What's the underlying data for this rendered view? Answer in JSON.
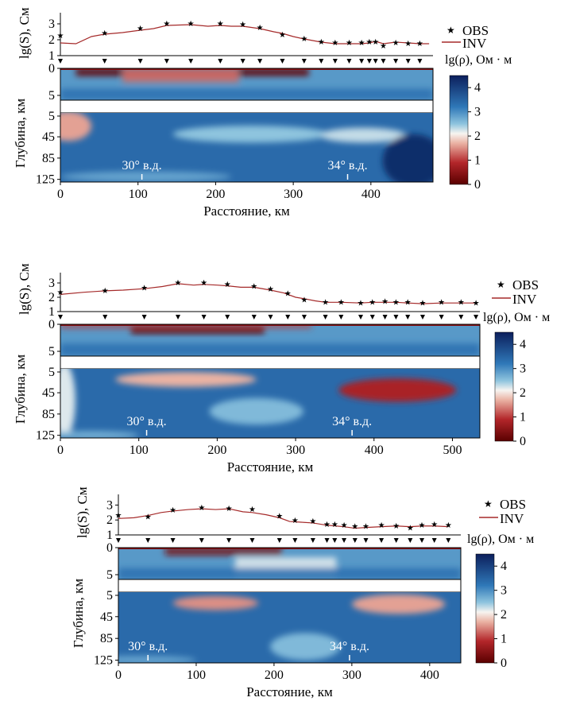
{
  "colors": {
    "conductive_dark": "#5a0000",
    "conductive": "#b3262a",
    "mid_pink": "#eab2a3",
    "neutral": "#f7f4f0",
    "light_blue": "#8ec4de",
    "mid_blue": "#2f78b8",
    "resistive_dark": "#0c1f5c",
    "profile_line": "#a52a2a",
    "marker": "#000000"
  },
  "common": {
    "ylabel_top": "lg(S), См",
    "ylabel_bottom": "Глубина, км",
    "xlabel": "Расстояние, км",
    "legend_obs": "OBS",
    "legend_inv": "INV",
    "colorbar_title": "lg(ρ), Ом · м",
    "colorbar_ticks": [
      "0",
      "1",
      "2",
      "3",
      "4"
    ],
    "top_ticks": [
      "1",
      "2",
      "3"
    ],
    "depth_ticks": [
      "0",
      "5",
      "5",
      "45",
      "85",
      "125"
    ],
    "lon_labels": [
      "30° в.д.",
      "34° в.д."
    ]
  },
  "chart_data": [
    {
      "type": "heatmap",
      "panel": 1,
      "x_max": 480,
      "xticks": [
        0,
        100,
        200,
        300,
        400
      ],
      "xlim": [
        0,
        480
      ],
      "top_ylim": [
        1,
        3.5
      ],
      "colorbar_range": [
        0,
        4.5
      ],
      "lon_marks": [
        105,
        370
      ],
      "stations": [
        0,
        57,
        103,
        137,
        168,
        206,
        235,
        257,
        286,
        314,
        336,
        354,
        372,
        388,
        398,
        406,
        416,
        432,
        448,
        463
      ],
      "obs": [
        [
          0,
          2.3
        ],
        [
          57,
          2.45
        ],
        [
          103,
          2.75
        ],
        [
          137,
          3.05
        ],
        [
          168,
          3.05
        ],
        [
          206,
          3.05
        ],
        [
          235,
          3.0
        ],
        [
          257,
          2.8
        ],
        [
          286,
          2.35
        ],
        [
          314,
          2.1
        ],
        [
          336,
          1.9
        ],
        [
          354,
          1.85
        ],
        [
          372,
          1.85
        ],
        [
          388,
          1.85
        ],
        [
          398,
          1.9
        ],
        [
          406,
          1.9
        ],
        [
          416,
          1.65
        ],
        [
          432,
          1.85
        ],
        [
          448,
          1.8
        ],
        [
          463,
          1.8
        ]
      ],
      "inv": [
        [
          0,
          1.8
        ],
        [
          20,
          1.75
        ],
        [
          40,
          2.2
        ],
        [
          57,
          2.35
        ],
        [
          80,
          2.45
        ],
        [
          103,
          2.6
        ],
        [
          120,
          2.7
        ],
        [
          137,
          2.9
        ],
        [
          168,
          2.95
        ],
        [
          190,
          2.85
        ],
        [
          206,
          2.9
        ],
        [
          220,
          2.85
        ],
        [
          235,
          2.85
        ],
        [
          257,
          2.7
        ],
        [
          275,
          2.5
        ],
        [
          286,
          2.4
        ],
        [
          300,
          2.2
        ],
        [
          314,
          2.05
        ],
        [
          336,
          1.85
        ],
        [
          354,
          1.75
        ],
        [
          372,
          1.75
        ],
        [
          388,
          1.75
        ],
        [
          398,
          1.8
        ],
        [
          406,
          1.9
        ],
        [
          416,
          1.75
        ],
        [
          432,
          1.85
        ],
        [
          448,
          1.8
        ],
        [
          463,
          1.75
        ],
        [
          475,
          1.75
        ]
      ],
      "upper_anomalies": [
        {
          "x0": 20,
          "x1": 320,
          "z0": 0,
          "z1": 1.2,
          "value": 0.1
        },
        {
          "x0": 80,
          "x1": 230,
          "z0": 0,
          "z1": 2.2,
          "value": 1.3
        },
        {
          "x0": 0,
          "x1": 480,
          "z0": 3.2,
          "z1": 5,
          "value": 3.3
        }
      ],
      "lower_anomalies": [
        {
          "x": 10,
          "z": 25,
          "rx": 30,
          "rz": 28,
          "value": 1.6
        },
        {
          "x": 245,
          "z": 40,
          "rx": 100,
          "rz": 16,
          "value": 2.5
        },
        {
          "x": 390,
          "z": 42,
          "rx": 55,
          "rz": 14,
          "value": 2.3
        },
        {
          "x": 110,
          "z": 120,
          "rx": 110,
          "rz": 10,
          "value": 2.8
        },
        {
          "x": 455,
          "z": 90,
          "rx": 40,
          "rz": 50,
          "value": 4.3
        }
      ]
    },
    {
      "type": "heatmap",
      "panel": 2,
      "x_max": 535,
      "xticks": [
        0,
        100,
        200,
        300,
        400,
        500
      ],
      "xlim": [
        0,
        535
      ],
      "top_ylim": [
        1,
        3.5
      ],
      "colorbar_range": [
        0,
        4.5
      ],
      "lon_marks": [
        110,
        372
      ],
      "stations": [
        0,
        57,
        107,
        150,
        183,
        213,
        247,
        268,
        290,
        311,
        338,
        358,
        383,
        398,
        414,
        428,
        443,
        462,
        486,
        511,
        530
      ],
      "obs": [
        [
          0,
          2.4
        ],
        [
          57,
          2.5
        ],
        [
          107,
          2.7
        ],
        [
          150,
          3.05
        ],
        [
          183,
          3.05
        ],
        [
          213,
          2.95
        ],
        [
          247,
          2.8
        ],
        [
          268,
          2.6
        ],
        [
          290,
          2.3
        ],
        [
          311,
          1.85
        ],
        [
          338,
          1.7
        ],
        [
          358,
          1.7
        ],
        [
          383,
          1.65
        ],
        [
          398,
          1.7
        ],
        [
          414,
          1.75
        ],
        [
          428,
          1.7
        ],
        [
          443,
          1.7
        ],
        [
          462,
          1.65
        ],
        [
          486,
          1.7
        ],
        [
          511,
          1.7
        ],
        [
          530,
          1.65
        ]
      ],
      "inv": [
        [
          0,
          2.2
        ],
        [
          30,
          2.35
        ],
        [
          57,
          2.45
        ],
        [
          80,
          2.5
        ],
        [
          107,
          2.6
        ],
        [
          130,
          2.75
        ],
        [
          150,
          2.95
        ],
        [
          170,
          2.85
        ],
        [
          183,
          2.9
        ],
        [
          200,
          2.85
        ],
        [
          213,
          2.8
        ],
        [
          230,
          2.7
        ],
        [
          247,
          2.7
        ],
        [
          268,
          2.5
        ],
        [
          285,
          2.3
        ],
        [
          300,
          2.0
        ],
        [
          311,
          1.9
        ],
        [
          325,
          1.75
        ],
        [
          338,
          1.65
        ],
        [
          358,
          1.65
        ],
        [
          383,
          1.6
        ],
        [
          398,
          1.65
        ],
        [
          414,
          1.65
        ],
        [
          428,
          1.65
        ],
        [
          443,
          1.6
        ],
        [
          462,
          1.55
        ],
        [
          486,
          1.6
        ],
        [
          511,
          1.6
        ],
        [
          530,
          1.6
        ]
      ],
      "upper_anomalies": [
        {
          "x0": 90,
          "x1": 260,
          "z0": 0,
          "z1": 1.5,
          "value": 0.1
        },
        {
          "x0": 0,
          "x1": 320,
          "z0": 0,
          "z1": 0.6,
          "value": 1.0
        },
        {
          "x0": 0,
          "x1": 535,
          "z0": 3.0,
          "z1": 5,
          "value": 3.3
        }
      ],
      "lower_anomalies": [
        {
          "x": 5,
          "z": 60,
          "rx": 14,
          "rz": 70,
          "value": 2.2
        },
        {
          "x": 160,
          "z": 20,
          "rx": 90,
          "rz": 14,
          "value": 1.7
        },
        {
          "x": 430,
          "z": 40,
          "rx": 75,
          "rz": 22,
          "value": 0.8
        },
        {
          "x": 250,
          "z": 80,
          "rx": 60,
          "rz": 25,
          "value": 2.6
        },
        {
          "x": 40,
          "z": 125,
          "rx": 60,
          "rz": 8,
          "value": 2.7
        }
      ]
    },
    {
      "type": "heatmap",
      "panel": 3,
      "x_max": 440,
      "xticks": [
        0,
        100,
        200,
        300,
        400
      ],
      "xlim": [
        0,
        440
      ],
      "top_ylim": [
        1,
        3.5
      ],
      "colorbar_range": [
        0,
        4.5
      ],
      "lon_marks": [
        38,
        297
      ],
      "stations": [
        0,
        38,
        70,
        107,
        142,
        172,
        207,
        227,
        250,
        268,
        278,
        290,
        304,
        318,
        338,
        357,
        375,
        390,
        406,
        424
      ],
      "obs": [
        [
          0,
          2.35
        ],
        [
          38,
          2.25
        ],
        [
          70,
          2.7
        ],
        [
          107,
          2.85
        ],
        [
          142,
          2.8
        ],
        [
          172,
          2.75
        ],
        [
          207,
          2.3
        ],
        [
          227,
          2.0
        ],
        [
          250,
          1.95
        ],
        [
          268,
          1.75
        ],
        [
          278,
          1.75
        ],
        [
          290,
          1.7
        ],
        [
          304,
          1.6
        ],
        [
          318,
          1.6
        ],
        [
          338,
          1.7
        ],
        [
          357,
          1.65
        ],
        [
          375,
          1.5
        ],
        [
          390,
          1.7
        ],
        [
          406,
          1.75
        ],
        [
          424,
          1.7
        ]
      ],
      "inv": [
        [
          0,
          2.1
        ],
        [
          20,
          2.15
        ],
        [
          38,
          2.3
        ],
        [
          55,
          2.5
        ],
        [
          70,
          2.6
        ],
        [
          90,
          2.7
        ],
        [
          107,
          2.75
        ],
        [
          125,
          2.7
        ],
        [
          142,
          2.75
        ],
        [
          160,
          2.55
        ],
        [
          172,
          2.5
        ],
        [
          190,
          2.35
        ],
        [
          207,
          2.15
        ],
        [
          220,
          1.9
        ],
        [
          235,
          1.85
        ],
        [
          250,
          1.8
        ],
        [
          268,
          1.65
        ],
        [
          290,
          1.55
        ],
        [
          304,
          1.45
        ],
        [
          318,
          1.5
        ],
        [
          338,
          1.55
        ],
        [
          357,
          1.6
        ],
        [
          375,
          1.55
        ],
        [
          390,
          1.6
        ],
        [
          406,
          1.6
        ],
        [
          424,
          1.55
        ]
      ],
      "upper_anomalies": [
        {
          "x0": 60,
          "x1": 210,
          "z0": 0,
          "z1": 1.2,
          "value": 0.3
        },
        {
          "x0": 150,
          "x1": 280,
          "z0": 1.5,
          "z1": 5,
          "value": 2.2
        },
        {
          "x0": 0,
          "x1": 440,
          "z0": 3.2,
          "z1": 5,
          "value": 3.3
        }
      ],
      "lower_anomalies": [
        {
          "x": 125,
          "z": 20,
          "rx": 55,
          "rz": 13,
          "value": 1.5
        },
        {
          "x": 360,
          "z": 22,
          "rx": 60,
          "rz": 18,
          "value": 1.6
        },
        {
          "x": 240,
          "z": 100,
          "rx": 45,
          "rz": 25,
          "value": 2.6
        },
        {
          "x": 30,
          "z": 125,
          "rx": 70,
          "rz": 8,
          "value": 2.8
        }
      ]
    }
  ]
}
